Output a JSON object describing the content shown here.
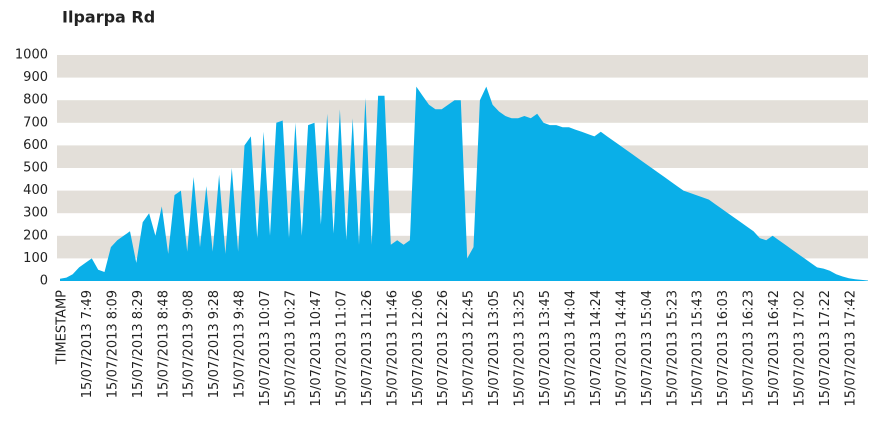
{
  "chart_data": {
    "type": "area",
    "title": "Ilparpa Rd",
    "categories": [
      "TIMESTAMP",
      null,
      null,
      null,
      "15/07/2013 7:49",
      null,
      null,
      null,
      "15/07/2013 8:09",
      null,
      null,
      null,
      "15/07/2013 8:29",
      null,
      null,
      null,
      "15/07/2013 8:48",
      null,
      null,
      null,
      "15/07/2013 9:08",
      null,
      null,
      null,
      "15/07/2013 9:28",
      null,
      null,
      null,
      "15/07/2013 9:48",
      null,
      null,
      null,
      "15/07/2013 10:07",
      null,
      null,
      null,
      "15/07/2013 10:27",
      null,
      null,
      null,
      "15/07/2013 10:47",
      null,
      null,
      null,
      "15/07/2013 11:07",
      null,
      null,
      null,
      "15/07/2013 11:26",
      null,
      null,
      null,
      "15/07/2013 11:46",
      null,
      null,
      null,
      "15/07/2013 12:06",
      null,
      null,
      null,
      "15/07/2013 12:26",
      null,
      null,
      null,
      "15/07/2013 12:45",
      null,
      null,
      null,
      "15/07/2013 13:05",
      null,
      null,
      null,
      "15/07/2013 13:25",
      null,
      null,
      null,
      "15/07/2013 13:45",
      null,
      null,
      null,
      "15/07/2013 14:04",
      null,
      null,
      null,
      "15/07/2013 14:24",
      null,
      null,
      null,
      "15/07/2013 14:44",
      null,
      null,
      null,
      "15/07/2013 15:04",
      null,
      null,
      null,
      "15/07/2013 15:23",
      null,
      null,
      null,
      "15/07/2013 15:43",
      null,
      null,
      null,
      "15/07/2013 16:03",
      null,
      null,
      null,
      "15/07/2013 16:23",
      null,
      null,
      null,
      "15/07/2013 16:42",
      null,
      null,
      null,
      "15/07/2013 17:02",
      null,
      null,
      null,
      "15/07/2013 17:22",
      null,
      null,
      null,
      "15/07/2013 17:42",
      null,
      null,
      null
    ],
    "values": [
      10,
      15,
      30,
      60,
      80,
      100,
      50,
      40,
      150,
      180,
      200,
      220,
      80,
      260,
      300,
      200,
      330,
      120,
      380,
      400,
      130,
      460,
      150,
      420,
      130,
      470,
      120,
      500,
      130,
      600,
      640,
      190,
      660,
      200,
      700,
      710,
      190,
      700,
      200,
      690,
      700,
      250,
      740,
      210,
      760,
      180,
      720,
      160,
      810,
      160,
      820,
      820,
      160,
      180,
      160,
      180,
      860,
      820,
      780,
      760,
      760,
      780,
      800,
      800,
      100,
      150,
      800,
      860,
      780,
      750,
      730,
      720,
      720,
      730,
      720,
      740,
      700,
      690,
      690,
      680,
      680,
      670,
      660,
      650,
      640,
      660,
      640,
      620,
      600,
      580,
      560,
      540,
      520,
      500,
      480,
      460,
      440,
      420,
      400,
      390,
      380,
      370,
      360,
      340,
      320,
      300,
      280,
      260,
      240,
      220,
      190,
      180,
      200,
      180,
      160,
      140,
      120,
      100,
      80,
      60,
      55,
      45,
      30,
      20,
      12,
      8,
      5,
      2
    ],
    "color": "#0aafe8",
    "ylim": [
      0,
      1000
    ],
    "yticks": [
      0,
      100,
      200,
      300,
      400,
      500,
      600,
      700,
      800,
      900,
      1000
    ],
    "grid": "banded",
    "band_color": "#e3dfd9"
  }
}
